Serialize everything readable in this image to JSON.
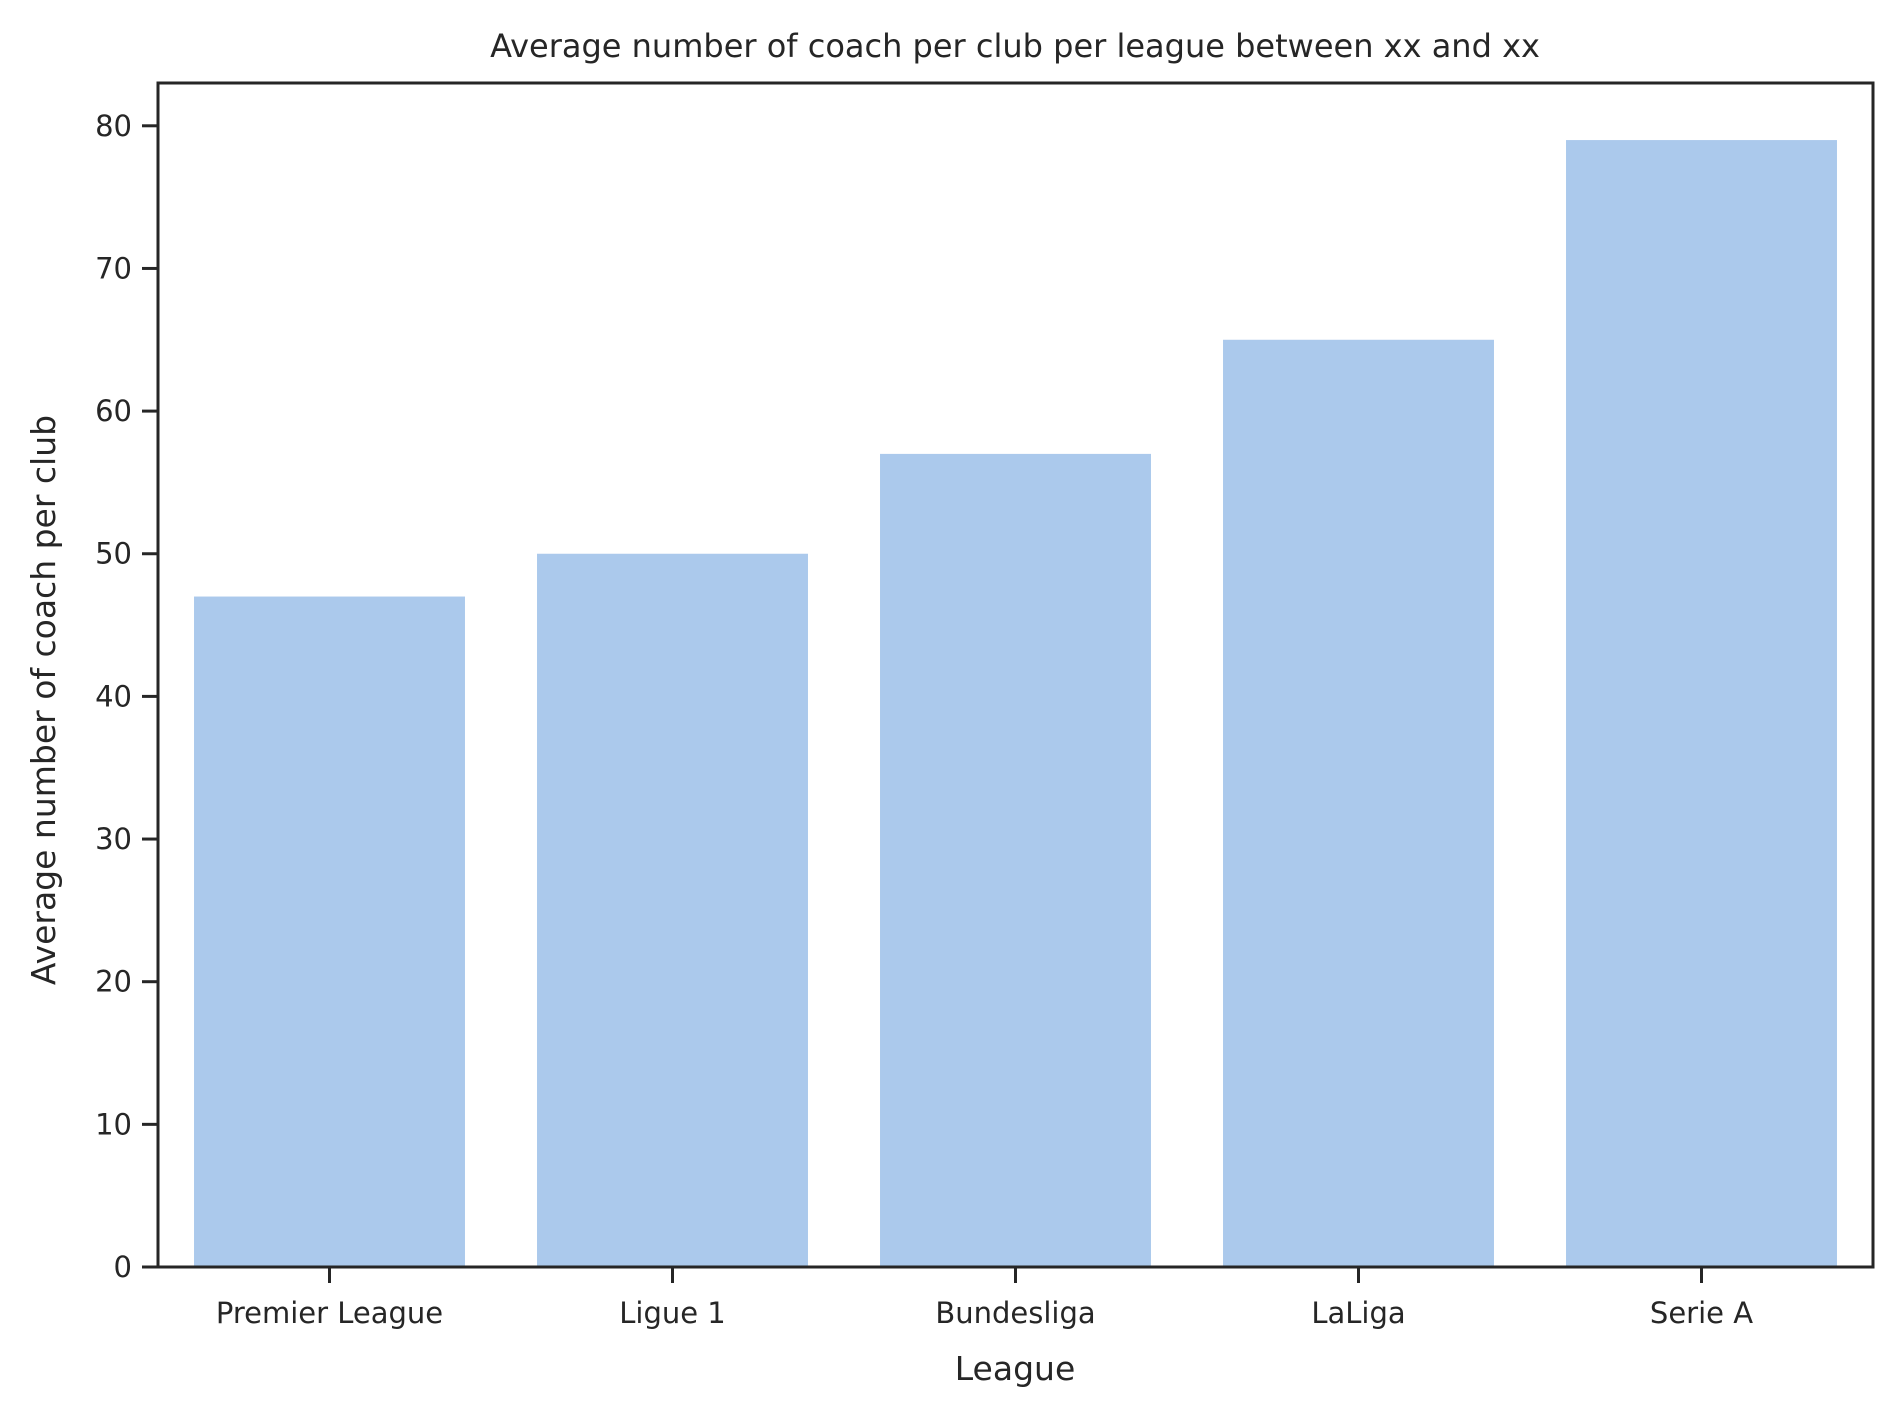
{
  "chart_data": {
    "type": "bar",
    "title": "Average number of coach per club per league between xx and xx",
    "xlabel": "League",
    "ylabel": "Average number of coach per club",
    "categories": [
      "Premier League",
      "Ligue 1",
      "Bundesliga",
      "LaLiga",
      "Serie A"
    ],
    "values": [
      47,
      50,
      57,
      65,
      79
    ],
    "ylim": [
      0,
      83
    ],
    "yticks": [
      0,
      10,
      20,
      30,
      40,
      50,
      60,
      70,
      80
    ],
    "grid": false,
    "legend": false,
    "colors": {
      "bar": "#abc9ec",
      "axis": "#262626",
      "text": "#262626"
    }
  }
}
